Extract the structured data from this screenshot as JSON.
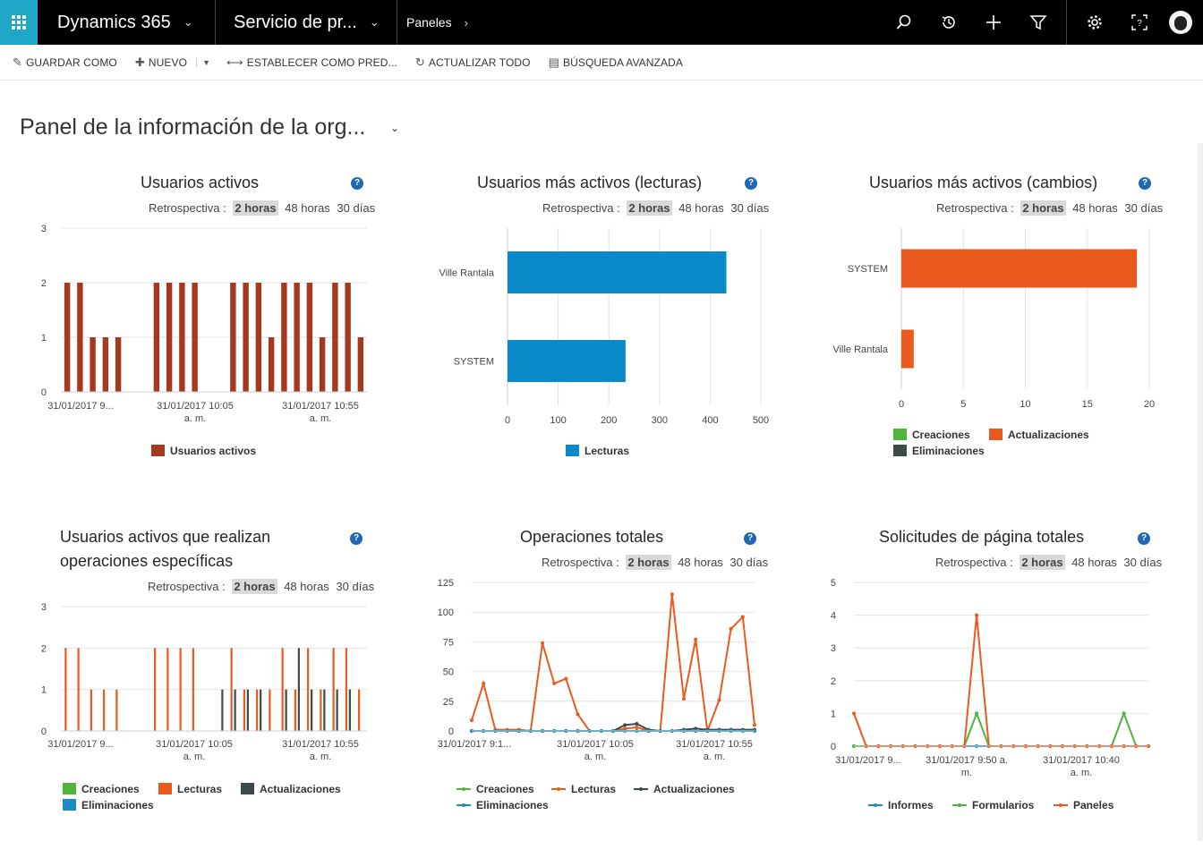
{
  "nav": {
    "app_title": "Dynamics 365",
    "area": "Servicio de pr...",
    "breadcrumb": "Paneles",
    "icons": [
      "search-icon",
      "history-icon",
      "plus-icon",
      "filter-icon",
      "gear-icon",
      "help-icon",
      "user-avatar"
    ]
  },
  "commands": {
    "save_as": "GUARDAR COMO",
    "new": "NUEVO",
    "set_default": "ESTABLECER COMO PRED...",
    "refresh_all": "ACTUALIZAR TODO",
    "advanced_find": "BÚSQUEDA AVANZADA"
  },
  "dashboard": {
    "title": "Panel de la información de la org..."
  },
  "retro": {
    "label": "Retrospectiva :",
    "opt1": "2 horas",
    "opt2": "48 horas",
    "opt3": "30 días"
  },
  "colors": {
    "rust": "#a4391f",
    "blue": "#0a8ac9",
    "orange": "#ea5a1f",
    "green": "#4fb63c",
    "dark": "#3e4a4a",
    "teal": "#1a8cc4"
  },
  "panels": [
    {
      "title": "Usuarios activos"
    },
    {
      "title": "Usuarios más activos (lecturas)"
    },
    {
      "title": "Usuarios más activos (cambios)"
    },
    {
      "title": "Usuarios activos que realizan operaciones específicas"
    },
    {
      "title": "Operaciones totales"
    },
    {
      "title": "Solicitudes de página totales"
    }
  ],
  "chart_data": [
    {
      "type": "bar",
      "title": "Usuarios activos",
      "ylim": [
        0,
        3
      ],
      "yticks": [
        "0",
        "1",
        "2",
        "3"
      ],
      "xticks": [
        "31/01/2017 9...",
        "31/01/2017 10:05\na. m.",
        "31/01/2017 10:55\na. m."
      ],
      "series": [
        {
          "name": "Usuarios activos",
          "values": [
            2,
            2,
            1,
            1,
            1,
            0,
            0,
            2,
            2,
            2,
            2,
            0,
            0,
            2,
            2,
            2,
            1,
            2,
            2,
            2,
            1,
            2,
            2,
            1
          ]
        }
      ]
    },
    {
      "type": "bar",
      "title": "Usuarios más activos (lecturas)",
      "orientation": "horizontal",
      "categories": [
        "Ville Rantala",
        "SYSTEM"
      ],
      "xlim": [
        0,
        500
      ],
      "xticks": [
        "0",
        "100",
        "200",
        "300",
        "400",
        "500"
      ],
      "series": [
        {
          "name": "Lecturas",
          "values": [
            432,
            233
          ]
        }
      ]
    },
    {
      "type": "bar",
      "title": "Usuarios más activos (cambios)",
      "orientation": "horizontal",
      "categories": [
        "SYSTEM",
        "Ville Rantala"
      ],
      "xlim": [
        0,
        20
      ],
      "xticks": [
        "0",
        "5",
        "10",
        "15",
        "20"
      ],
      "series": [
        {
          "name": "Creaciones",
          "values": [
            0,
            0
          ]
        },
        {
          "name": "Actualizaciones",
          "values": [
            19,
            1
          ]
        },
        {
          "name": "Eliminaciones",
          "values": [
            0,
            0
          ]
        }
      ]
    },
    {
      "type": "bar",
      "title": "Usuarios activos que realizan operaciones específicas",
      "ylim": [
        0,
        3
      ],
      "yticks": [
        "0",
        "1",
        "2",
        "3"
      ],
      "xticks": [
        "31/01/2017 9...",
        "31/01/2017 10:05\na. m.",
        "31/01/2017 10:55\na. m."
      ],
      "series": [
        {
          "name": "Creaciones",
          "values": [
            0,
            0,
            0,
            0,
            0,
            0,
            0,
            0,
            0,
            0,
            0,
            0,
            0,
            0,
            0,
            0,
            0,
            0,
            0,
            0,
            0,
            0,
            0,
            0
          ]
        },
        {
          "name": "Lecturas",
          "values": [
            2,
            2,
            1,
            1,
            1,
            0,
            0,
            2,
            2,
            2,
            2,
            0,
            0,
            2,
            1,
            1,
            1,
            2,
            1,
            2,
            1,
            2,
            2,
            1
          ]
        },
        {
          "name": "Actualizaciones",
          "values": [
            0,
            0,
            0,
            0,
            0,
            0,
            0,
            0,
            0,
            0,
            0,
            0,
            1,
            1,
            1,
            1,
            0,
            1,
            2,
            1,
            1,
            1,
            1,
            0
          ]
        },
        {
          "name": "Eliminaciones",
          "values": [
            0,
            0,
            0,
            0,
            0,
            0,
            0,
            0,
            0,
            0,
            0,
            0,
            0,
            0,
            0,
            0,
            0,
            0,
            0,
            0,
            0,
            0,
            0,
            0
          ]
        }
      ]
    },
    {
      "type": "line",
      "title": "Operaciones totales",
      "ylim": [
        0,
        125
      ],
      "yticks": [
        "0",
        "25",
        "50",
        "75",
        "100",
        "125"
      ],
      "xticks": [
        "31/01/2017 9:1...",
        "31/01/2017 10:05\na. m.",
        "31/01/2017 10:55\na. m."
      ],
      "series": [
        {
          "name": "Creaciones",
          "values": [
            0,
            0,
            0,
            0,
            0,
            0,
            0,
            0,
            0,
            0,
            0,
            0,
            0,
            0,
            0,
            0,
            0,
            0,
            0,
            0,
            0,
            0,
            0,
            0,
            0
          ]
        },
        {
          "name": "Lecturas",
          "values": [
            9,
            40,
            1,
            1,
            1,
            0,
            74,
            40,
            44,
            14,
            0,
            0,
            0,
            2,
            3,
            0,
            0,
            115,
            27,
            77,
            0,
            26,
            86,
            96,
            5
          ]
        },
        {
          "name": "Actualizaciones",
          "values": [
            0,
            0,
            0,
            0,
            0,
            0,
            0,
            0,
            0,
            0,
            0,
            0,
            0,
            5,
            6,
            1,
            0,
            0,
            1,
            2,
            1,
            1,
            1,
            1,
            1
          ]
        },
        {
          "name": "Eliminaciones",
          "values": [
            0,
            0,
            0,
            0,
            0,
            0,
            0,
            0,
            0,
            0,
            0,
            0,
            0,
            0,
            0,
            0,
            0,
            0,
            0,
            0,
            0,
            0,
            0,
            0,
            0
          ]
        }
      ]
    },
    {
      "type": "line",
      "title": "Solicitudes de página totales",
      "ylim": [
        0,
        5
      ],
      "yticks": [
        "0",
        "1",
        "2",
        "3",
        "4",
        "5"
      ],
      "xticks": [
        "31/01/2017 9...",
        "31/01/2017 9:50 a.\nm.",
        "31/01/2017 10:40\na. m."
      ],
      "series": [
        {
          "name": "Informes",
          "values": [
            0,
            0,
            0,
            0,
            0,
            0,
            0,
            0,
            0,
            0,
            0,
            0,
            0,
            0,
            0,
            0,
            0,
            0,
            0,
            0,
            0,
            0,
            0,
            0,
            0
          ]
        },
        {
          "name": "Formularios",
          "values": [
            0,
            0,
            0,
            0,
            0,
            0,
            0,
            0,
            0,
            0,
            1,
            0,
            0,
            0,
            0,
            0,
            0,
            0,
            0,
            0,
            0,
            0,
            1,
            0,
            0
          ]
        },
        {
          "name": "Paneles",
          "values": [
            1,
            0,
            0,
            0,
            0,
            0,
            0,
            0,
            0,
            0,
            4,
            0,
            0,
            0,
            0,
            0,
            0,
            0,
            0,
            0,
            0,
            0,
            0,
            0,
            0
          ]
        }
      ]
    }
  ]
}
